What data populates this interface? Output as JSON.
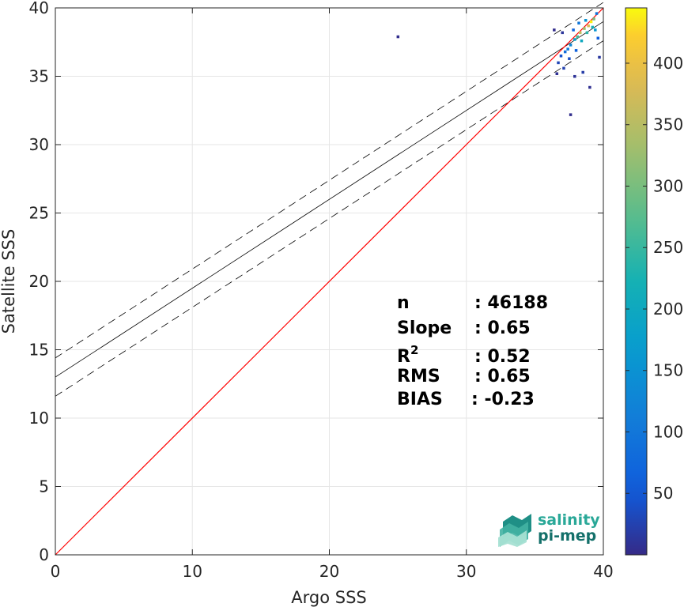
{
  "chart_data": {
    "type": "heatmap",
    "xlabel": "Argo SSS",
    "ylabel": "Satellite SSS",
    "xlim": [
      0,
      40
    ],
    "ylim": [
      0,
      40
    ],
    "x_ticks": [
      0,
      10,
      20,
      30,
      40
    ],
    "y_ticks": [
      0,
      5,
      10,
      15,
      20,
      25,
      30,
      35,
      40
    ],
    "grid": true,
    "colorbar": {
      "colormap": "parula",
      "range": [
        0,
        445
      ],
      "ticks": [
        50,
        100,
        150,
        200,
        250,
        300,
        350,
        400
      ]
    },
    "identity_line": {
      "x": [
        0,
        40
      ],
      "y": [
        0,
        40
      ],
      "color": "#ff0000"
    },
    "regression_line": {
      "slope": 0.65,
      "intercept": 13.0,
      "color": "#000000"
    },
    "confidence_band": {
      "offset": 1.4,
      "style": "dashed"
    },
    "density_cells": [
      {
        "x": 39.1,
        "y": 39.0,
        "count": 440
      },
      {
        "x": 38.9,
        "y": 38.7,
        "count": 380
      },
      {
        "x": 38.3,
        "y": 38.2,
        "count": 360
      },
      {
        "x": 38.6,
        "y": 38.5,
        "count": 330
      },
      {
        "x": 39.3,
        "y": 39.2,
        "count": 300
      },
      {
        "x": 38.1,
        "y": 37.9,
        "count": 260
      },
      {
        "x": 38.8,
        "y": 38.2,
        "count": 240
      },
      {
        "x": 39.2,
        "y": 38.6,
        "count": 220
      },
      {
        "x": 38.4,
        "y": 37.6,
        "count": 200
      },
      {
        "x": 37.9,
        "y": 37.7,
        "count": 180
      },
      {
        "x": 39.4,
        "y": 38.4,
        "count": 160
      },
      {
        "x": 38.7,
        "y": 39.1,
        "count": 150
      },
      {
        "x": 37.6,
        "y": 37.3,
        "count": 130
      },
      {
        "x": 37.4,
        "y": 37.0,
        "count": 110
      },
      {
        "x": 38.2,
        "y": 38.9,
        "count": 100
      },
      {
        "x": 39.5,
        "y": 39.6,
        "count": 95
      },
      {
        "x": 37.2,
        "y": 36.8,
        "count": 80
      },
      {
        "x": 37.8,
        "y": 38.4,
        "count": 70
      },
      {
        "x": 38.0,
        "y": 36.9,
        "count": 60
      },
      {
        "x": 39.6,
        "y": 37.8,
        "count": 55
      },
      {
        "x": 36.9,
        "y": 36.5,
        "count": 45
      },
      {
        "x": 37.5,
        "y": 36.3,
        "count": 40
      },
      {
        "x": 36.7,
        "y": 36.0,
        "count": 30
      },
      {
        "x": 37.1,
        "y": 35.6,
        "count": 25
      },
      {
        "x": 38.5,
        "y": 35.3,
        "count": 20
      },
      {
        "x": 39.7,
        "y": 36.4,
        "count": 15
      },
      {
        "x": 37.0,
        "y": 38.2,
        "count": 12
      },
      {
        "x": 37.9,
        "y": 35.0,
        "count": 10
      },
      {
        "x": 36.6,
        "y": 35.2,
        "count": 8
      },
      {
        "x": 39.0,
        "y": 34.2,
        "count": 6
      },
      {
        "x": 37.6,
        "y": 32.2,
        "count": 4
      },
      {
        "x": 25.0,
        "y": 37.9,
        "count": 4
      },
      {
        "x": 36.4,
        "y": 38.4,
        "count": 3
      }
    ]
  },
  "stats": {
    "rows": [
      {
        "label": "n",
        "sup": "",
        "value": ": 46188"
      },
      {
        "label": "Slope",
        "sup": "",
        "value": ": 0.65"
      },
      {
        "label": "R",
        "sup": "2",
        "value": ": 0.52"
      },
      {
        "label": "RMS",
        "sup": "",
        "value": ": 0.65"
      },
      {
        "label": "BIAS",
        "sup": "",
        "value": ": -0.23"
      }
    ]
  },
  "logo": {
    "line1": "salinity",
    "line2": "pi-mep",
    "color1": "#2aa898",
    "color2": "#14706a"
  }
}
